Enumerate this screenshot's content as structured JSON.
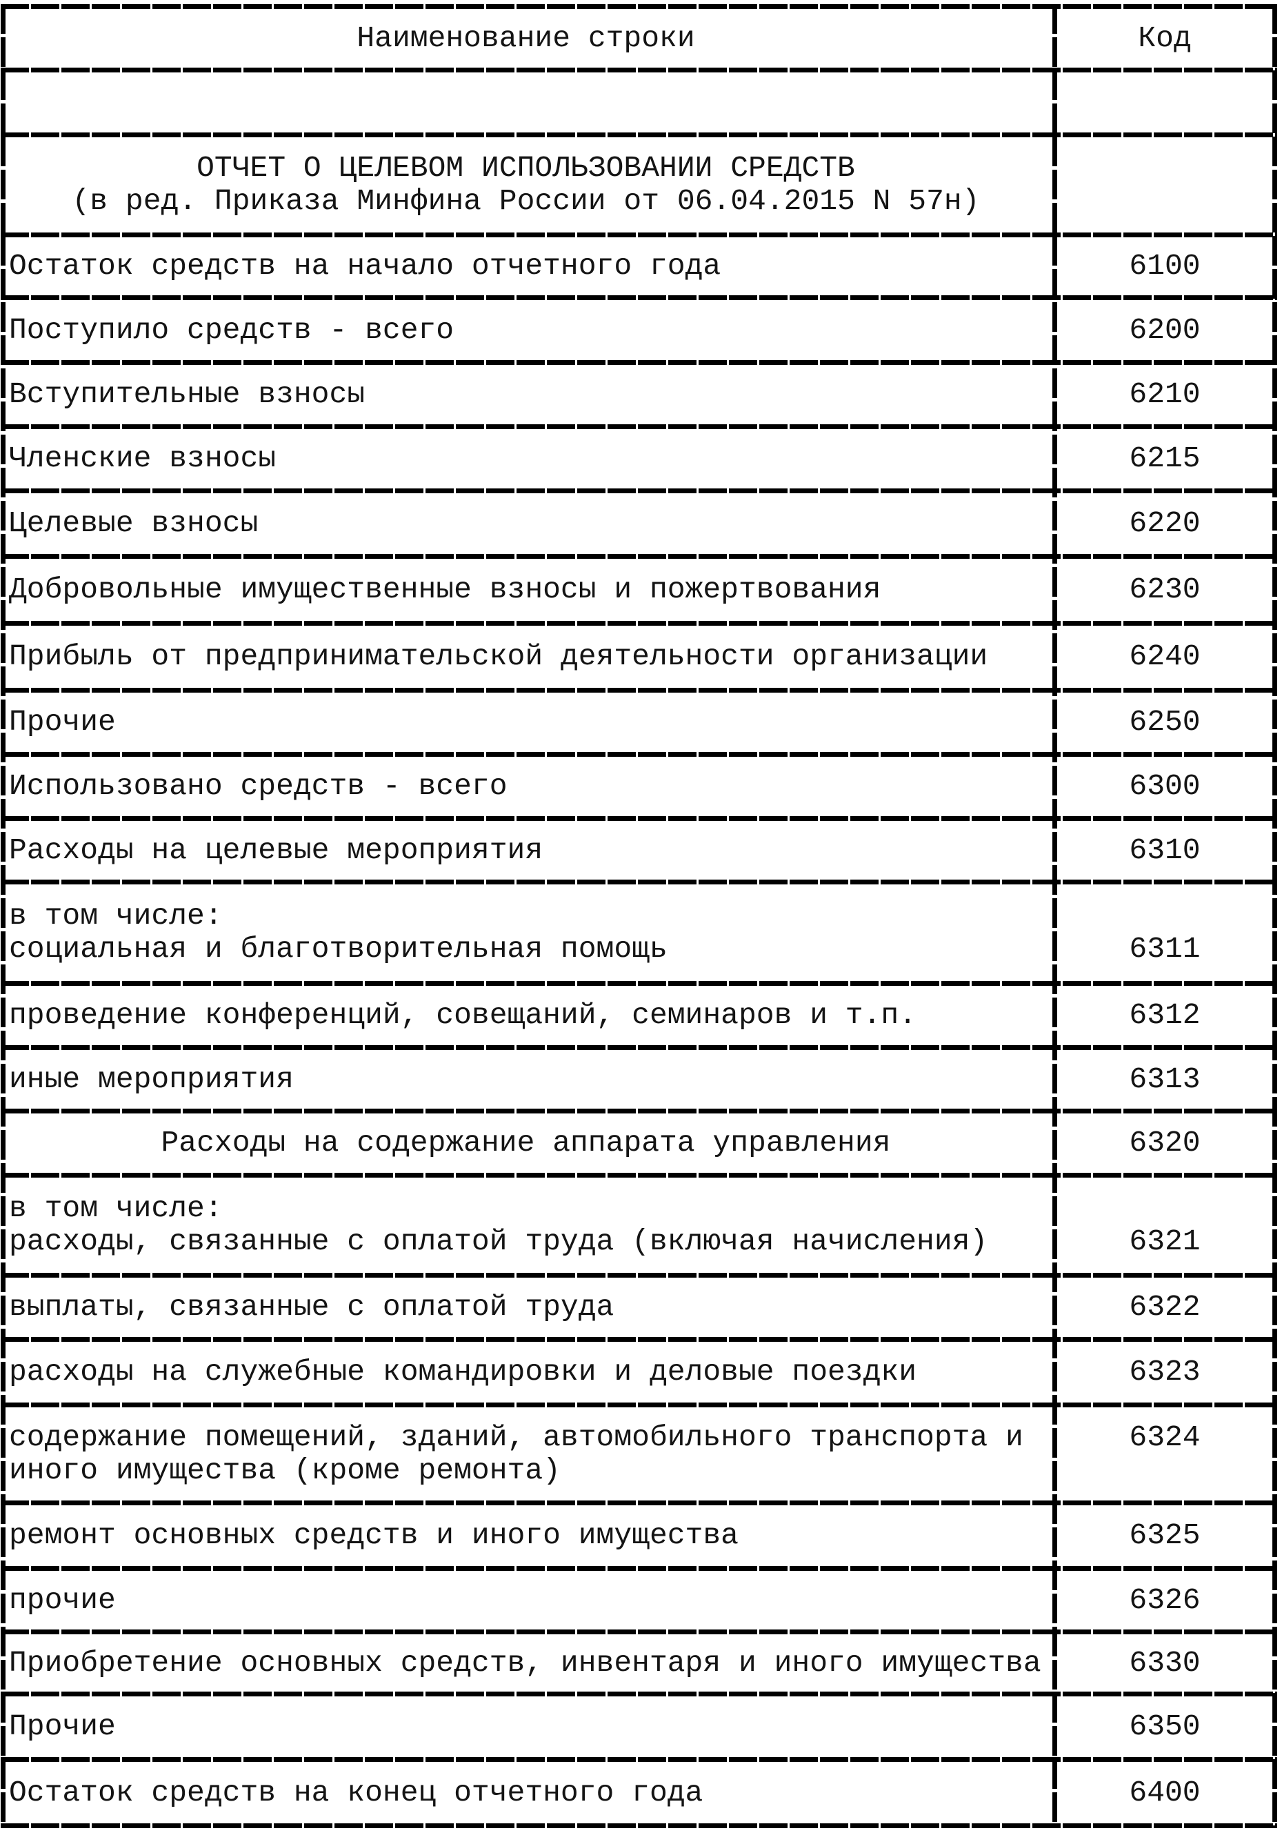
{
  "page": {
    "background": "#ffffff",
    "ink": "#000000"
  },
  "table": {
    "header": {
      "name": "Наименование строки",
      "code": "Код",
      "height": 85
    },
    "rows": [
      {
        "kind": "blank",
        "align": "left",
        "lines": [],
        "code": "",
        "height": 87
      },
      {
        "kind": "section-title",
        "align": "center",
        "lines": [
          "ОТЧЕТ О ЦЕЛЕВОМ ИСПОЛЬЗОВАНИИ СРЕДСТВ",
          "(в ред. Приказа Минфина России от 06.04.2015 N 57н)"
        ],
        "code": "",
        "height": 138
      },
      {
        "kind": "item",
        "align": "left",
        "lines": [
          "Остаток средств на начало отчетного года"
        ],
        "code": "6100",
        "height": 84
      },
      {
        "kind": "item",
        "align": "left",
        "lines": [
          "Поступило средств - всего"
        ],
        "code": "6200",
        "height": 87
      },
      {
        "kind": "item",
        "align": "left",
        "lines": [
          "Вступительные взносы"
        ],
        "code": "6210",
        "height": 86
      },
      {
        "kind": "item",
        "align": "left",
        "lines": [
          "Членские взносы"
        ],
        "code": "6215",
        "height": 86
      },
      {
        "kind": "item",
        "align": "left",
        "lines": [
          "Целевые взносы"
        ],
        "code": "6220",
        "height": 88
      },
      {
        "kind": "item",
        "align": "left",
        "lines": [
          "Добровольные имущественные взносы и пожертвования"
        ],
        "code": "6230",
        "height": 90
      },
      {
        "kind": "item",
        "align": "left",
        "lines": [
          "Прибыль от предпринимательской деятельности организации"
        ],
        "code": "6240",
        "height": 90
      },
      {
        "kind": "item",
        "align": "left",
        "lines": [
          "Прочие"
        ],
        "code": "6250",
        "height": 86
      },
      {
        "kind": "item",
        "align": "left",
        "lines": [
          "Использовано средств - всего"
        ],
        "code": "6300",
        "height": 86
      },
      {
        "kind": "item",
        "align": "left",
        "lines": [
          "Расходы на целевые мероприятия"
        ],
        "code": "6310",
        "height": 85
      },
      {
        "kind": "item",
        "align": "left",
        "lines": [
          "в том числе:",
          "социальная и благотворительная помощь"
        ],
        "code": "6311",
        "code_line": 1,
        "height": 140
      },
      {
        "kind": "item",
        "align": "left",
        "lines": [
          "проведение конференций, совещаний, семинаров и т.п."
        ],
        "code": "6312",
        "height": 86
      },
      {
        "kind": "item",
        "align": "left",
        "lines": [
          "иные мероприятия"
        ],
        "code": "6313",
        "height": 85
      },
      {
        "kind": "item",
        "align": "center",
        "lines": [
          "Расходы на содержание аппарата управления"
        ],
        "code": "6320",
        "height": 86
      },
      {
        "kind": "item",
        "align": "left",
        "lines": [
          "в том числе:",
          "расходы, связанные с оплатой труда (включая начисления)"
        ],
        "code": "6321",
        "code_line": 1,
        "height": 138
      },
      {
        "kind": "item",
        "align": "left",
        "lines": [
          "выплаты, связанные с оплатой труда"
        ],
        "code": "6322",
        "height": 86
      },
      {
        "kind": "item",
        "align": "left",
        "lines": [
          "расходы на служебные командировки и деловые поездки"
        ],
        "code": "6323",
        "height": 88
      },
      {
        "kind": "item",
        "align": "left",
        "lines": [
          "содержание помещений, зданий, автомобильного транспорта и",
          "иного имущества (кроме ремонта)"
        ],
        "code": "6324",
        "code_line": 0,
        "height": 135
      },
      {
        "kind": "item",
        "align": "left",
        "lines": [
          "ремонт основных средств и иного имущества"
        ],
        "code": "6325",
        "height": 88
      },
      {
        "kind": "item",
        "align": "left",
        "lines": [
          "прочие"
        ],
        "code": "6326",
        "height": 85
      },
      {
        "kind": "item",
        "align": "left",
        "lines": [
          "Приобретение основных средств, инвентаря и иного имущества"
        ],
        "code": "6330",
        "height": 83
      },
      {
        "kind": "item",
        "align": "left",
        "lines": [
          "Прочие"
        ],
        "code": "6350",
        "height": 88
      },
      {
        "kind": "item",
        "align": "left",
        "lines": [
          "Остаток средств на конец отчетного года"
        ],
        "code": "6400",
        "height": 89
      }
    ]
  }
}
